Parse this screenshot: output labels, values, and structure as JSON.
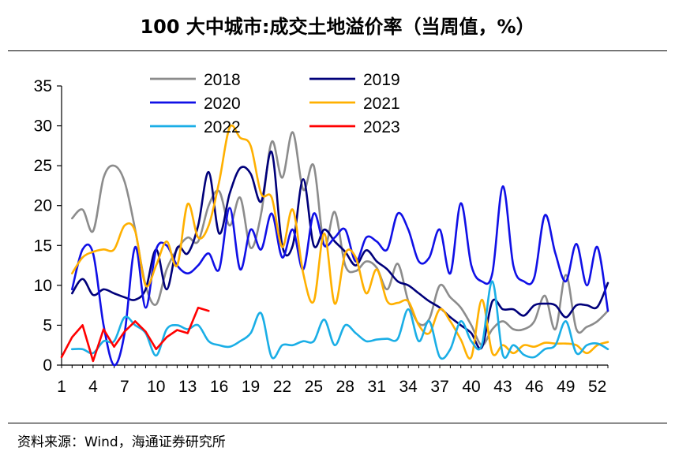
{
  "title": "100 大中城市:成交土地溢价率（当周值，%）",
  "source": "资料来源：Wind，海通证券研究所",
  "chart_data": {
    "type": "line",
    "title": "100 大中城市:成交土地溢价率（当周值，%）",
    "xlabel": "",
    "ylabel": "",
    "ylim": [
      0,
      35
    ],
    "yticks": [
      0,
      5,
      10,
      15,
      20,
      25,
      30,
      35
    ],
    "xlim": [
      1,
      53
    ],
    "xticks": [
      1,
      4,
      7,
      10,
      13,
      16,
      19,
      22,
      25,
      28,
      31,
      34,
      37,
      40,
      43,
      46,
      49,
      52
    ],
    "grid": false,
    "legend_position": "top",
    "series": [
      {
        "name": "2018",
        "color": "#8c8c8c",
        "values": [
          null,
          18.4,
          19.5,
          16.8,
          23.5,
          25,
          23,
          17,
          10,
          7.6,
          12,
          14.5,
          16,
          15.5,
          20,
          21.8,
          17.5,
          21,
          14.7,
          19,
          28,
          23.5,
          29.2,
          22,
          25,
          15,
          19.2,
          12.5,
          11.8,
          13,
          12.2,
          9.5,
          12.7,
          8,
          5.2,
          5.8,
          10,
          8.5,
          7.2,
          5,
          2.5,
          4.5,
          5.5,
          4.5,
          4.5,
          5.5,
          8.7,
          4.5,
          11.3,
          4.5,
          4.8,
          5.5,
          6.8
        ]
      },
      {
        "name": "2019",
        "color": "#00007a",
        "values": [
          null,
          9,
          10.8,
          8.8,
          9.5,
          9,
          8.5,
          8.2,
          9.5,
          14.5,
          9.5,
          14.7,
          14,
          17.5,
          24.2,
          16.5,
          21.5,
          24.7,
          24,
          20.5,
          26.7,
          15,
          15,
          23.3,
          15,
          17,
          15.5,
          14.2,
          12.5,
          14.4,
          13,
          12,
          10.5,
          10,
          9,
          8,
          7.2,
          6,
          5,
          4,
          2.2,
          8,
          7,
          7,
          6.2,
          7.5,
          7.7,
          7.5,
          6,
          7.5,
          7.5,
          7.3,
          10.3
        ]
      },
      {
        "name": "2020",
        "color": "#1010e6",
        "values": [
          null,
          9.5,
          14.5,
          14,
          5,
          0,
          4,
          14.8,
          7.2,
          14.5,
          15,
          12.5,
          11.5,
          12.5,
          14,
          12,
          19.7,
          12,
          17,
          14.5,
          19,
          13.5,
          17,
          12,
          19,
          15,
          16,
          17,
          13,
          16,
          15.5,
          14.5,
          19,
          17,
          13,
          13.5,
          17,
          11.5,
          20.3,
          12.5,
          10.5,
          11.5,
          22.4,
          12.5,
          10.5,
          11,
          18.8,
          14,
          10.5,
          15.2,
          10,
          14.8,
          6.8
        ]
      },
      {
        "name": "2021",
        "color": "#ffb000",
        "values": [
          null,
          11.5,
          13.5,
          14.2,
          14.5,
          14.5,
          17.5,
          16.8,
          10,
          12.5,
          15.5,
          12.5,
          20.2,
          16,
          17.5,
          23,
          29.8,
          28.5,
          27.5,
          21.5,
          21,
          14.8,
          19.5,
          11.5,
          8,
          16.5,
          7.7,
          14,
          13.5,
          9,
          12,
          8,
          7.8,
          8,
          5,
          4,
          7,
          5.5,
          3.2,
          1,
          8.2,
          1.5,
          2.5,
          1.5,
          2.5,
          2.3,
          2.8,
          2.7,
          2.7,
          2.5,
          1.5,
          2.5,
          2.9
        ]
      },
      {
        "name": "2022",
        "color": "#1aaee6",
        "values": [
          null,
          2,
          2,
          1.5,
          3,
          3,
          6,
          5,
          4,
          1.2,
          4.5,
          5,
          4.5,
          5,
          3,
          2.5,
          2.3,
          3,
          4,
          6.5,
          1,
          2.5,
          2.5,
          3,
          3,
          5.7,
          2.5,
          5,
          4,
          3,
          3.2,
          3.3,
          3.3,
          7,
          3,
          5.5,
          1,
          2,
          5.5,
          3,
          2.5,
          10.5,
          1.3,
          2.5,
          1.3,
          1,
          2,
          2.5,
          5.5,
          1.5,
          2.5,
          2.7,
          2
        ]
      },
      {
        "name": "2023",
        "color": "#ff0000",
        "values": [
          1,
          3.5,
          5,
          0.5,
          4.5,
          2.3,
          4.2,
          5.5,
          4.2,
          2,
          3.5,
          4.4,
          4,
          7.2,
          6.8
        ]
      }
    ]
  }
}
